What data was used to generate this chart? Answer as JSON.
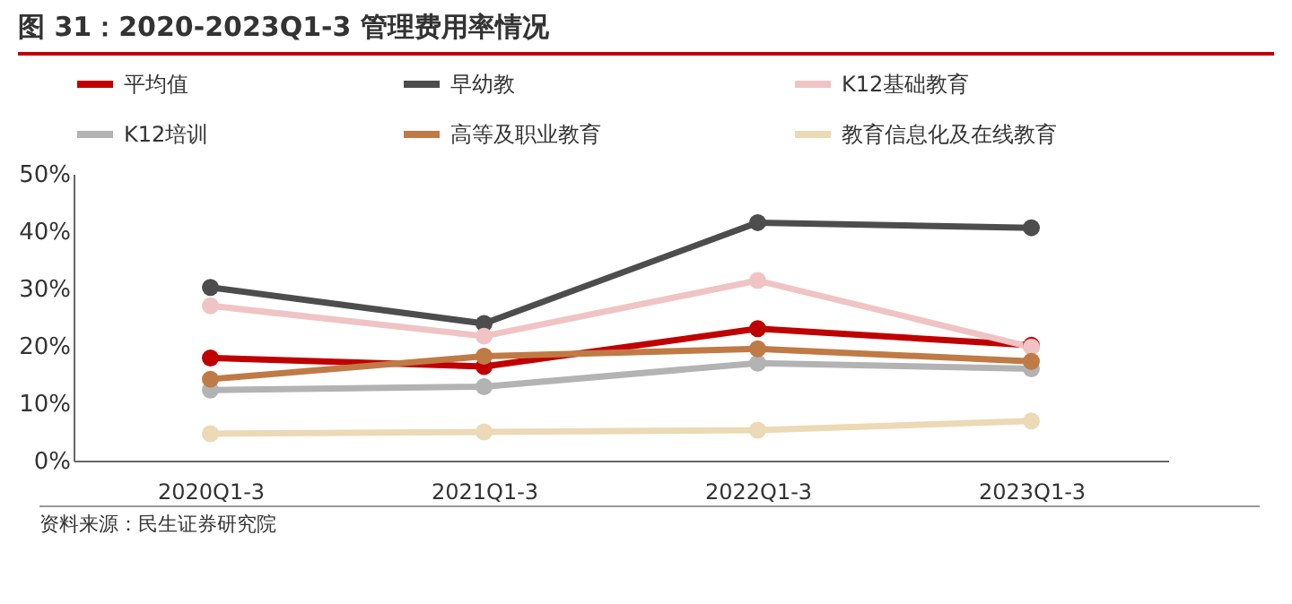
{
  "chart_data": {
    "type": "line",
    "title": "图 31：2020-2023Q1-3 管理费用率情况",
    "annotations": [
      "资料来源：民生证券研究院"
    ],
    "categories": [
      "2020Q1-3",
      "2021Q1-3",
      "2022Q1-3",
      "2023Q1-3"
    ],
    "series": [
      {
        "name": "平均值",
        "color": "#c00000",
        "values": [
          17.9,
          16.4,
          23.0,
          20.1
        ]
      },
      {
        "name": "早幼教",
        "color": "#4d4d4d",
        "values": [
          30.2,
          23.9,
          41.5,
          40.6
        ]
      },
      {
        "name": "K12基础教育",
        "color": "#f0c4c4",
        "values": [
          27.0,
          21.7,
          31.4,
          19.8
        ]
      },
      {
        "name": "K12培训",
        "color": "#b3b3b3",
        "values": [
          12.3,
          12.9,
          17.0,
          16.0
        ]
      },
      {
        "name": "高等及职业教育",
        "color": "#c07a45",
        "values": [
          14.2,
          18.2,
          19.5,
          17.3
        ]
      },
      {
        "name": "教育信息化及在线教育",
        "color": "#ecd9b5",
        "values": [
          4.7,
          5.0,
          5.3,
          6.9
        ]
      }
    ],
    "ylim": [
      0,
      50
    ],
    "yticks": [
      {
        "value": 0,
        "label": "0%"
      },
      {
        "value": 10,
        "label": "10%"
      },
      {
        "value": 20,
        "label": "20%"
      },
      {
        "value": 30,
        "label": "30%"
      },
      {
        "value": 40,
        "label": "40%"
      },
      {
        "value": 50,
        "label": "50%"
      }
    ],
    "grid": false,
    "legend": "top",
    "marker": "circle",
    "line_style": "solid"
  }
}
